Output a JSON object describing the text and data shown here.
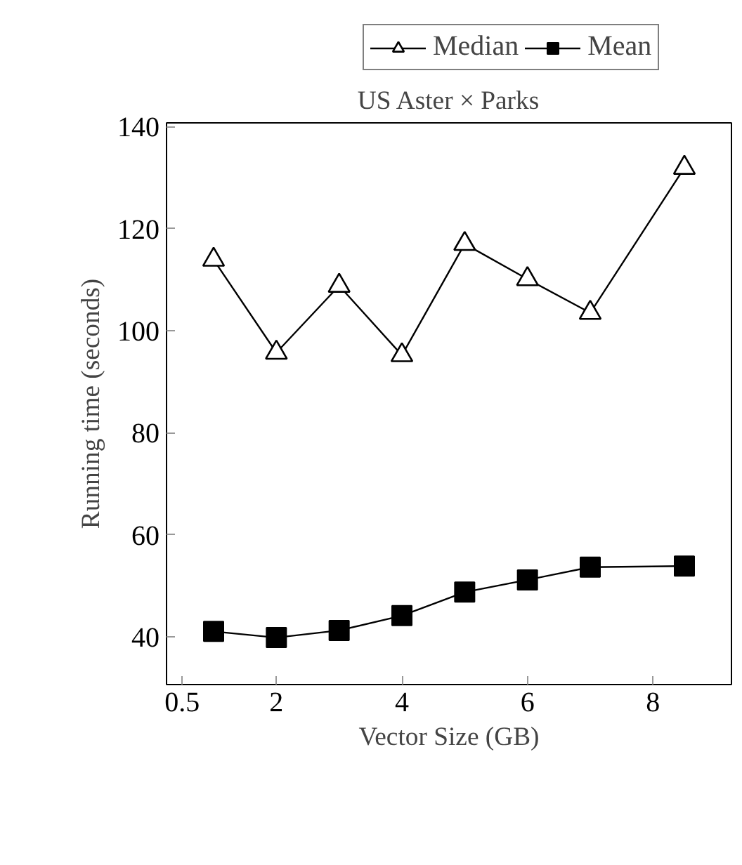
{
  "chart_data": {
    "type": "line",
    "title": "US Aster × Parks",
    "xlabel": "Vector Size (GB)",
    "ylabel": "Running time (seconds)",
    "x": [
      1,
      2,
      3,
      4,
      5,
      6,
      7,
      8.5
    ],
    "series": [
      {
        "name": "Median",
        "color": "#000000",
        "marker": "triangle",
        "values": [
          113.9,
          95.7,
          108.8,
          95.2,
          117.0,
          110.1,
          103.5,
          131.9
        ]
      },
      {
        "name": "Mean",
        "color": "#000000",
        "marker": "square",
        "values": [
          41.1,
          39.9,
          41.3,
          44.2,
          48.8,
          51.2,
          53.7,
          53.9
        ]
      }
    ],
    "xlim": [
      0.25,
      9.25
    ],
    "xticks": [
      0.5,
      2,
      4,
      6,
      8
    ],
    "ylim": [
      30.7,
      140.7
    ],
    "yticks": [
      40,
      60,
      80,
      100,
      120,
      140
    ],
    "grid": false,
    "legend": "top",
    "line_style": "solid"
  }
}
